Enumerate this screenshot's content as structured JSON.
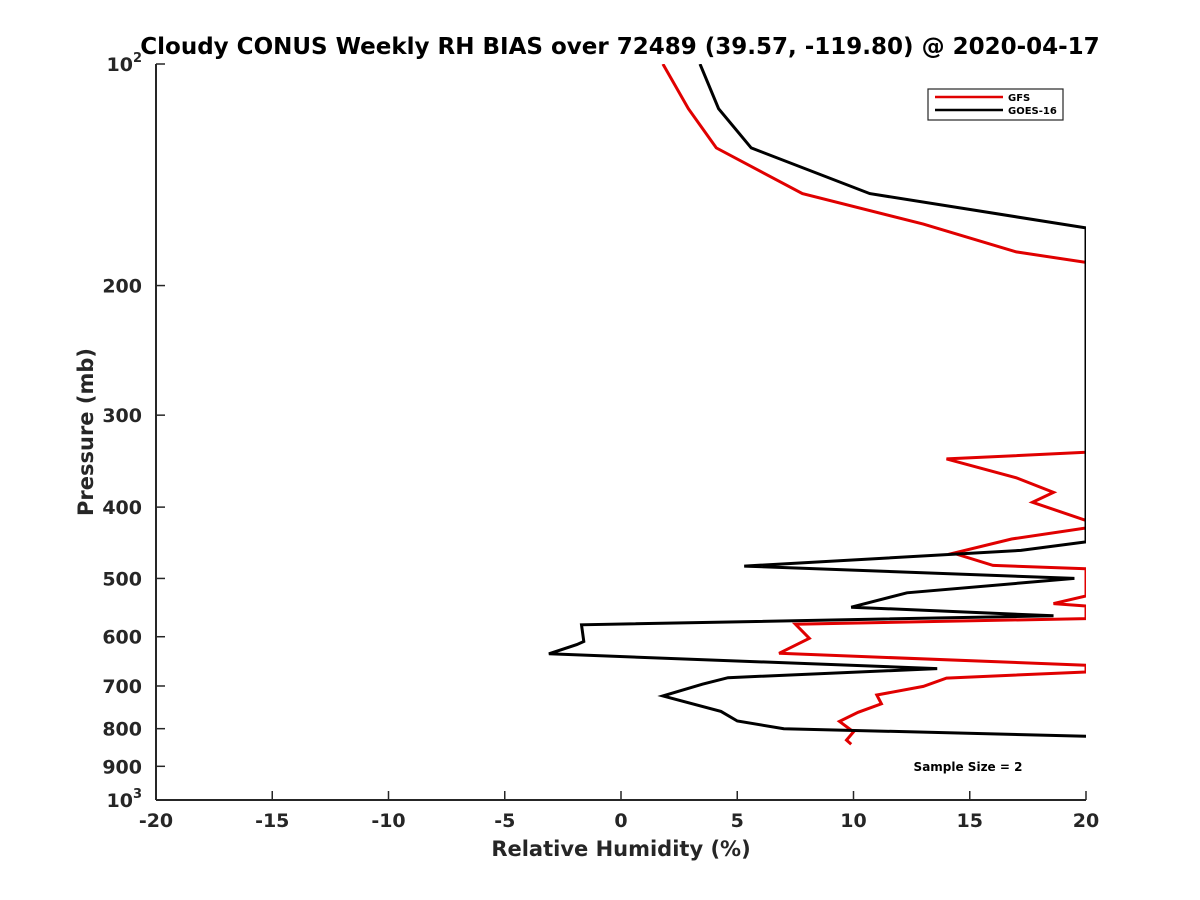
{
  "chart_data": {
    "type": "line",
    "title": "Cloudy CONUS Weekly RH BIAS over 72489 (39.57, -119.80) @ 2020-04-17",
    "xlabel": "Relative Humidity (%)",
    "ylabel": "Pressure (mb)",
    "xlim": [
      -20,
      20
    ],
    "ylim": [
      100,
      1000
    ],
    "y_scale": "log",
    "y_reversed": true,
    "grid": false,
    "legend_position": "top-right",
    "x_ticks": [
      "-20",
      "-15",
      "-10",
      "-5",
      "0",
      "5",
      "10",
      "15",
      "20"
    ],
    "y_ticks": [
      {
        "value": 100,
        "base": "10",
        "exp": "2"
      },
      {
        "value": 200,
        "label": "200"
      },
      {
        "value": 300,
        "label": "300"
      },
      {
        "value": 400,
        "label": "400"
      },
      {
        "value": 500,
        "label": "500"
      },
      {
        "value": 600,
        "label": "600"
      },
      {
        "value": 700,
        "label": "700"
      },
      {
        "value": 800,
        "label": "800"
      },
      {
        "value": 900,
        "label": "900"
      },
      {
        "value": 1000,
        "base": "10",
        "exp": "3"
      }
    ],
    "series": [
      {
        "name": "GFS",
        "color": "#e00000",
        "points": [
          [
            1.8,
            100
          ],
          [
            2.9,
            115
          ],
          [
            4.1,
            130
          ],
          [
            7.8,
            150
          ],
          [
            13,
            165
          ],
          [
            17,
            180
          ],
          [
            20,
            186
          ],
          [
            20,
            337
          ],
          [
            14,
            344
          ],
          [
            17,
            365
          ],
          [
            18.6,
            382
          ],
          [
            17.7,
            394
          ],
          [
            20,
            417
          ],
          [
            20,
            427
          ],
          [
            16.8,
            442
          ],
          [
            14.3,
            462
          ],
          [
            16,
            480
          ],
          [
            20,
            485
          ],
          [
            20,
            528
          ],
          [
            18.6,
            541
          ],
          [
            20,
            545
          ],
          [
            20,
            567
          ],
          [
            7.5,
            577
          ],
          [
            8.1,
            603
          ],
          [
            6.8,
            632
          ],
          [
            20,
            656
          ],
          [
            20,
            670
          ],
          [
            14,
            683
          ],
          [
            13,
            701
          ],
          [
            11,
            720
          ],
          [
            11.2,
            740
          ],
          [
            10.2,
            760
          ],
          [
            9.4,
            782
          ],
          [
            10,
            808
          ],
          [
            9.7,
            829
          ],
          [
            9.9,
            840
          ]
        ]
      },
      {
        "name": "GOES-16",
        "color": "#000000",
        "points": [
          [
            3.4,
            100
          ],
          [
            4.2,
            115
          ],
          [
            5.6,
            130
          ],
          [
            10.7,
            150
          ],
          [
            20,
            167
          ],
          [
            20,
            446
          ],
          [
            17.2,
            458
          ],
          [
            5.3,
            481
          ],
          [
            19.5,
            500
          ],
          [
            12.3,
            523
          ],
          [
            9.9,
            547
          ],
          [
            18.6,
            562
          ],
          [
            -1.7,
            578
          ],
          [
            -1.6,
            609
          ],
          [
            -1.9,
            615
          ],
          [
            -3.1,
            633
          ],
          [
            13.6,
            663
          ],
          [
            4.6,
            682
          ],
          [
            3.5,
            696
          ],
          [
            1.8,
            722
          ],
          [
            4.3,
            758
          ],
          [
            5,
            781
          ],
          [
            7,
            800
          ],
          [
            20,
            819
          ],
          [
            20,
            822
          ]
        ]
      }
    ],
    "annotations": [
      "Sample Size = 2"
    ]
  }
}
